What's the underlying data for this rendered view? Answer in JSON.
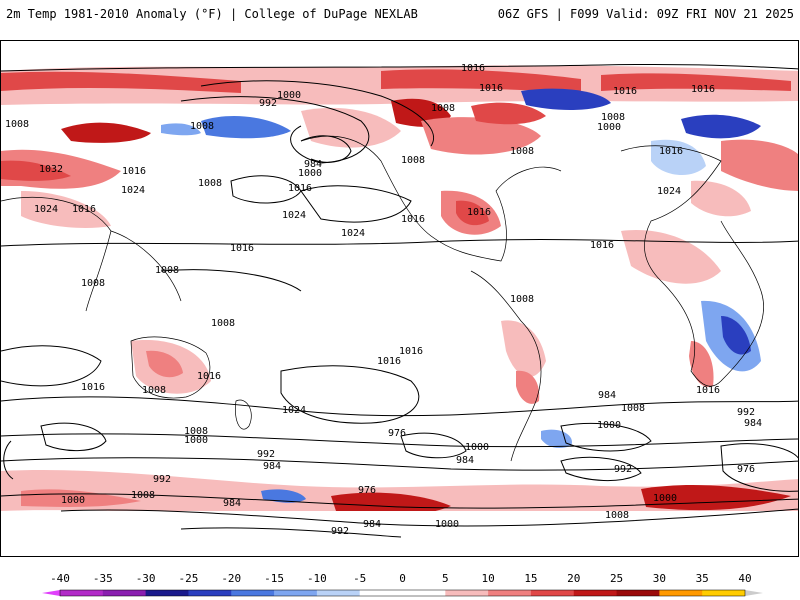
{
  "header": {
    "title_left": "2m Temp 1981-2010 Anomaly (°F) | College of DuPage NEXLAB",
    "title_right": "06Z GFS | F099 Valid: 09Z FRI NOV 21 2025"
  },
  "colorbar": {
    "ticks": [
      "-40",
      "-35",
      "-30",
      "-25",
      "-20",
      "-15",
      "-10",
      "-5",
      "0",
      "5",
      "10",
      "15",
      "20",
      "25",
      "30",
      "35",
      "40"
    ],
    "colors": [
      "#e040fb",
      "#b22ac8",
      "#8a1fb0",
      "#1a1a8c",
      "#2a3fbf",
      "#4a78e0",
      "#7ea6f0",
      "#b9d2f7",
      "#ffffff",
      "#ffffff",
      "#f7bcbc",
      "#ef8080",
      "#e04848",
      "#c01818",
      "#9a0a0a",
      "#ff9900",
      "#ffcc00"
    ]
  },
  "map": {
    "isobar_labels": [
      "1016",
      "1016",
      "1000",
      "992",
      "1008",
      "1016",
      "1016",
      "1008",
      "1008",
      "1000",
      "1008",
      "1032",
      "1016",
      "1024",
      "1008",
      "984",
      "1000",
      "1016",
      "1024",
      "1024",
      "1016",
      "1016",
      "1024",
      "1016",
      "1016",
      "1016",
      "1024",
      "1008",
      "1008",
      "1008",
      "1008",
      "1016",
      "1008",
      "1016",
      "1016",
      "1016",
      "1016",
      "1024",
      "1008",
      "1008",
      "1000",
      "1008",
      "992",
      "1000",
      "984",
      "976",
      "1000",
      "984",
      "992",
      "1008",
      "992",
      "984",
      "976",
      "1000",
      "976",
      "984",
      "1000",
      "1008",
      "992",
      "984",
      "1000",
      "1008",
      "992",
      "984",
      "1016"
    ]
  }
}
